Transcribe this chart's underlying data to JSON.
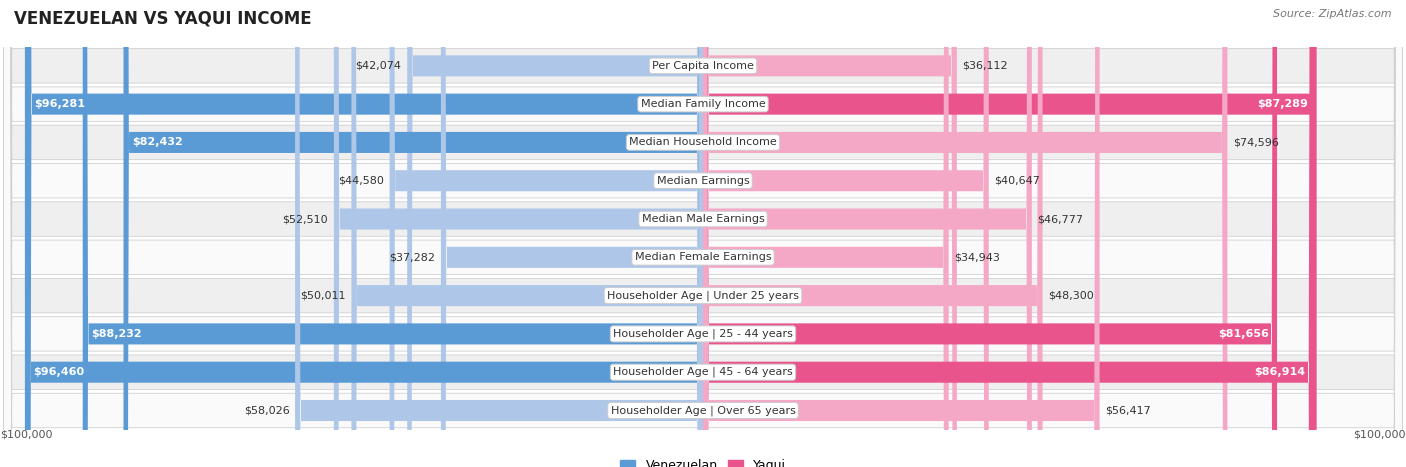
{
  "title": "VENEZUELAN VS YAQUI INCOME",
  "source": "Source: ZipAtlas.com",
  "max_value": 100000,
  "categories": [
    "Per Capita Income",
    "Median Family Income",
    "Median Household Income",
    "Median Earnings",
    "Median Male Earnings",
    "Median Female Earnings",
    "Householder Age | Under 25 years",
    "Householder Age | 25 - 44 years",
    "Householder Age | 45 - 64 years",
    "Householder Age | Over 65 years"
  ],
  "venezuelan_values": [
    42074,
    96281,
    82432,
    44580,
    52510,
    37282,
    50011,
    88232,
    96460,
    58026
  ],
  "yaqui_values": [
    36112,
    87289,
    74596,
    40647,
    46777,
    34943,
    48300,
    81656,
    86914,
    56417
  ],
  "venezuelan_color_full": "#5b9bd5",
  "venezuelan_color_light": "#aec6e8",
  "yaqui_color_full": "#e8548b",
  "yaqui_color_light": "#f4a8c6",
  "row_bg_even": "#efefef",
  "row_bg_odd": "#fafafa",
  "row_border": "#d0d0d0",
  "value_thresh": 75000,
  "title_fontsize": 12,
  "source_fontsize": 8,
  "bar_label_fontsize": 8,
  "cat_label_fontsize": 8
}
